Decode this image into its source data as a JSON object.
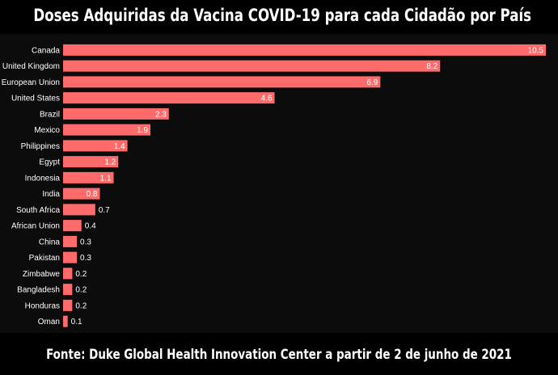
{
  "title": "Doses Adquiridas da Vacina COVID-19 para cada Cidadão por País",
  "footer": "Fonte: Duke Global Health Innovation Center a partir de 2 de junho de 2021",
  "colors": {
    "bar": "#ff6b6b",
    "background": "#000000",
    "panel": "#0c0c0c",
    "text": "#ffffff"
  },
  "chart_data": {
    "type": "bar",
    "orientation": "horizontal",
    "categories": [
      "Canada",
      "United Kingdom",
      "European Union",
      "United States",
      "Brazil",
      "Mexico",
      "Philippines",
      "Egypt",
      "Indonesia",
      "India",
      "South Africa",
      "African Union",
      "China",
      "Pakistan",
      "Zimbabwe",
      "Bangladesh",
      "Honduras",
      "Oman"
    ],
    "values": [
      10.5,
      8.2,
      6.9,
      4.6,
      2.3,
      1.9,
      1.4,
      1.2,
      1.1,
      0.8,
      0.7,
      0.4,
      0.3,
      0.3,
      0.2,
      0.2,
      0.2,
      0.1
    ],
    "value_labels": [
      "10.5",
      "8.2",
      "6.9",
      "4.6",
      "2.3",
      "1.9",
      "1.4",
      "1.2",
      "1.1",
      "0.8",
      "0.7",
      "0.4",
      "0.3",
      "0.3",
      "0.2",
      "0.2",
      "0.2",
      "0.1"
    ],
    "xlim": [
      0,
      10.5
    ],
    "grid": false,
    "legend": "none"
  }
}
